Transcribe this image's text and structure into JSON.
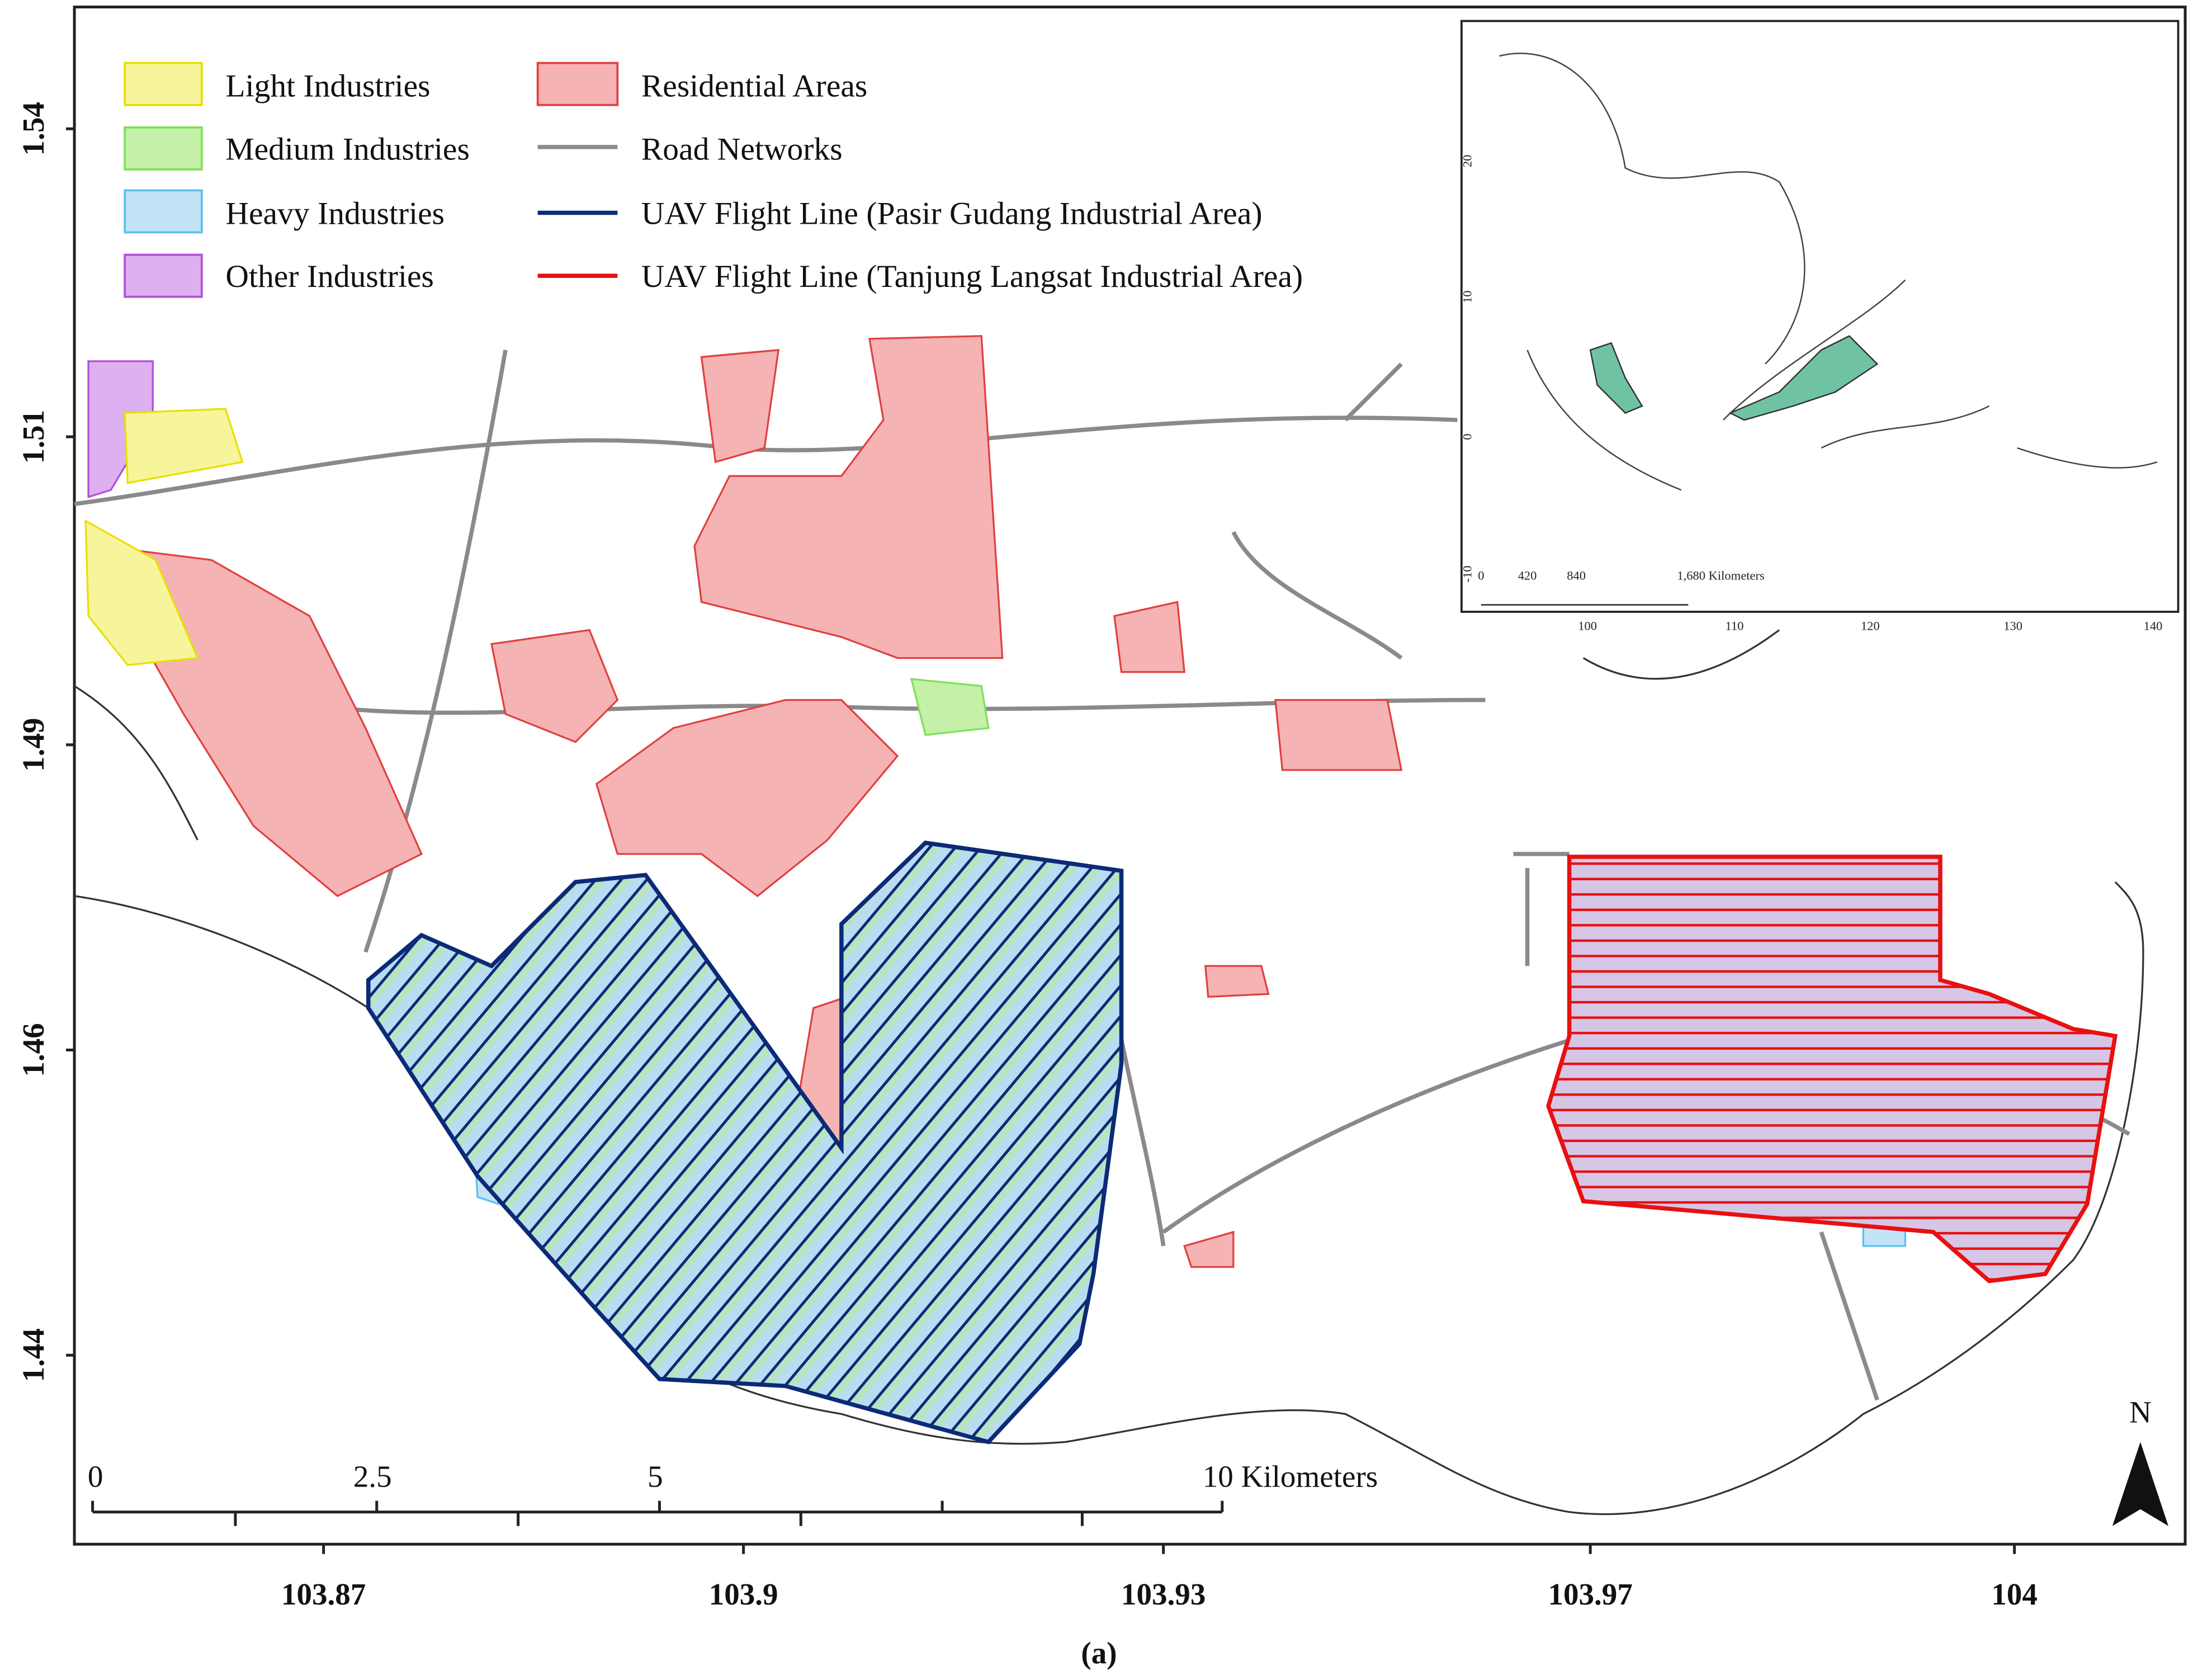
{
  "legend": [
    "Light Industries",
    "Medium Industries",
    "Heavy Industries",
    "Other Industries",
    "Residential Areas",
    "Road Networks",
    "UAV Flight Line (Pasir Gudang Industrial Area)",
    "UAV Flight Line (Tanjung Langsat Industrial Area)"
  ],
  "lat_ticks": [
    "1.54",
    "1.51",
    "1.49",
    "1.46",
    "1.44"
  ],
  "lon_ticks": [
    "103.87",
    "103.9",
    "103.93",
    "103.97",
    "104"
  ],
  "scale_bar": [
    "0",
    "2.5",
    "5",
    "10 Kilometers"
  ],
  "north": "N",
  "caption": "(a)",
  "inset": {
    "lat_ticks": [
      "20",
      "10",
      "0",
      "-10"
    ],
    "lon_ticks": [
      "100",
      "110",
      "120",
      "130",
      "140"
    ],
    "scale_bar": [
      "0",
      "420",
      "840",
      "1,680 Kilometers"
    ]
  }
}
